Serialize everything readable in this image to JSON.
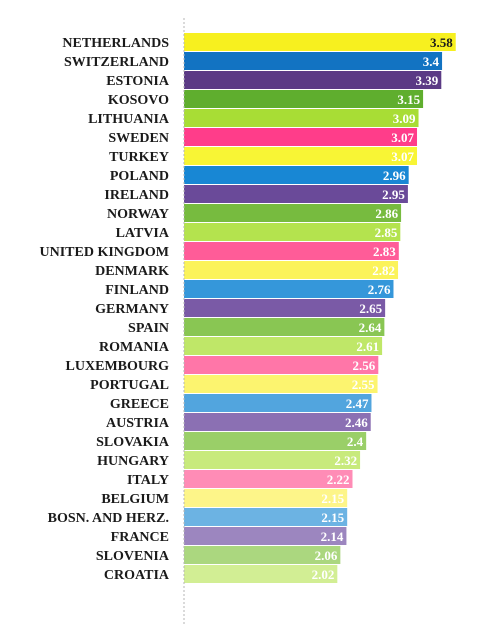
{
  "chart_data": {
    "type": "bar",
    "orientation": "horizontal",
    "title": "",
    "xlabel": "",
    "ylabel": "",
    "grid": false,
    "legend": "none",
    "xlim": [
      0,
      3.6
    ],
    "categories": [
      "NETHERLANDS",
      "SWITZERLAND",
      "ESTONIA",
      "KOSOVO",
      "LITHUANIA",
      "SWEDEN",
      "TURKEY",
      "POLAND",
      "IRELAND",
      "NORWAY",
      "LATVIA",
      "UNITED KINGDOM",
      "DENMARK",
      "FINLAND",
      "GERMANY",
      "SPAIN",
      "ROMANIA",
      "LUXEMBOURG",
      "PORTUGAL",
      "GREECE",
      "AUSTRIA",
      "SLOVAKIA",
      "HUNGARY",
      "ITALY",
      "BELGIUM",
      "BOSN. AND HERZ.",
      "FRANCE",
      "SLOVENIA",
      "CROATIA"
    ],
    "values": [
      3.58,
      3.4,
      3.39,
      3.15,
      3.09,
      3.07,
      3.07,
      2.96,
      2.95,
      2.86,
      2.85,
      2.83,
      2.82,
      2.76,
      2.65,
      2.64,
      2.61,
      2.56,
      2.55,
      2.47,
      2.46,
      2.4,
      2.32,
      2.22,
      2.15,
      2.15,
      2.14,
      2.06,
      2.02
    ],
    "value_labels": [
      "3.58",
      "3.4",
      "3.39",
      "3.15",
      "3.09",
      "3.07",
      "3.07",
      "2.96",
      "2.95",
      "2.86",
      "2.85",
      "2.83",
      "2.82",
      "2.76",
      "2.65",
      "2.64",
      "2.61",
      "2.56",
      "2.55",
      "2.47",
      "2.46",
      "2.4",
      "2.32",
      "2.22",
      "2.15",
      "2.15",
      "2.14",
      "2.06",
      "2.02"
    ],
    "colors": [
      "#f7f01f",
      "#1273c2",
      "#5b3a85",
      "#5fae2e",
      "#a8dd35",
      "#ff3d8a",
      "#f8f535",
      "#1887d4",
      "#6a4a99",
      "#77bb3f",
      "#b4e34e",
      "#ff5c98",
      "#fbf35a",
      "#3597da",
      "#7a5aa6",
      "#89c653",
      "#bfe768",
      "#ff76a8",
      "#fcf46f",
      "#52a5de",
      "#8b70b3",
      "#9acf68",
      "#c8ea7c",
      "#ff8cb6",
      "#fdf589",
      "#6cb3e3",
      "#9c86bf",
      "#abd77f",
      "#d2ee94"
    ],
    "label_colors": [
      "#1a1a1a",
      "#ffffff",
      "#ffffff",
      "#ffffff",
      "#ffffff",
      "#ffffff",
      "#ffffff",
      "#ffffff",
      "#ffffff",
      "#ffffff",
      "#ffffff",
      "#ffffff",
      "#ffffff",
      "#ffffff",
      "#ffffff",
      "#ffffff",
      "#ffffff",
      "#ffffff",
      "#ffffff",
      "#ffffff",
      "#ffffff",
      "#ffffff",
      "#ffffff",
      "#ffffff",
      "#ffffff",
      "#ffffff",
      "#ffffff",
      "#ffffff",
      "#ffffff"
    ],
    "axis_line_color": "#b5b5b5"
  }
}
